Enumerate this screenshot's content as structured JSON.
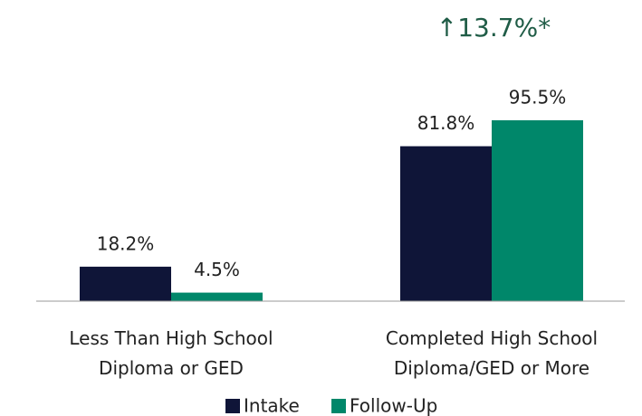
{
  "chart_data": {
    "type": "bar",
    "categories": [
      "Less Than High School\nDiploma or GED",
      "Completed High School\nDiploma/GED or More"
    ],
    "series": [
      {
        "name": "Intake",
        "color": "#0f1538",
        "values": [
          18.2,
          81.8
        ],
        "value_labels": [
          "18.2%",
          "81.8%"
        ]
      },
      {
        "name": "Follow-Up",
        "color": "#00876a",
        "values": [
          4.5,
          95.5
        ],
        "value_labels": [
          "4.5%",
          "95.5%"
        ]
      }
    ],
    "annotation": "↑13.7%*"
  }
}
